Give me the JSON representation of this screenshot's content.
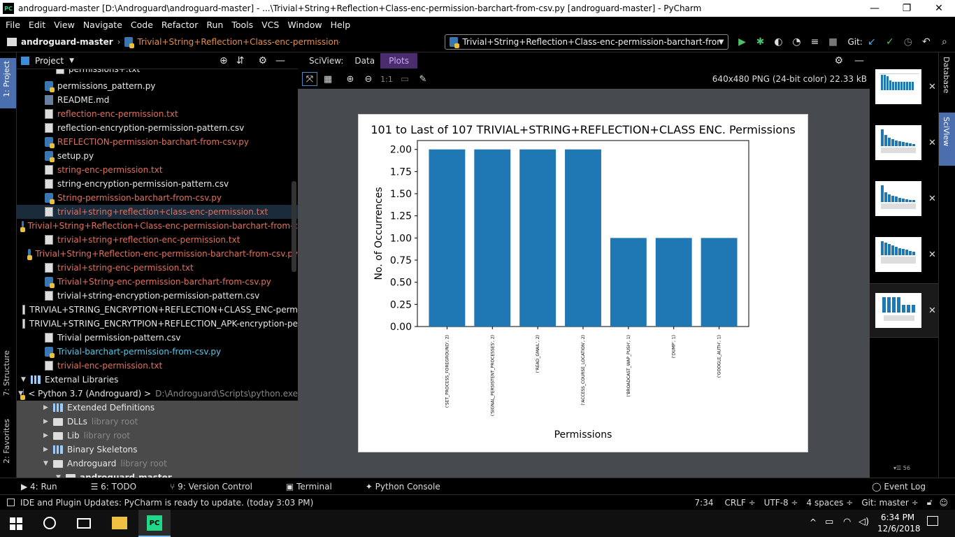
{
  "window": {
    "title": "androguard-master [D:\\Androguard\\androguard-master] - ...\\Trivial+String+Reflection+Class-enc-permission-barchart-from-csv.py [androguard-master] - PyCharm",
    "app_icon": "PC"
  },
  "menu": [
    "File",
    "Edit",
    "View",
    "Navigate",
    "Code",
    "Refactor",
    "Run",
    "Tools",
    "VCS",
    "Window",
    "Help"
  ],
  "nav": {
    "project": "androguard-master",
    "file": "Trivial+String+Reflection+Class-enc-permission-...",
    "run_config": "Trivial+String+Reflection+Class-enc-permission-barchart-from-csv",
    "git_label": "Git:"
  },
  "left_tabs": {
    "project": "1: Project",
    "structure": "7: Structure",
    "favorites": "2: Favorites"
  },
  "project_pane": {
    "title": "Project"
  },
  "tree": [
    {
      "label": "permissions+.txt",
      "icon": "txt",
      "color": "white",
      "indent": 56,
      "partial": true
    },
    {
      "label": "permissions_pattern.py",
      "icon": "py",
      "color": "white",
      "indent": 40
    },
    {
      "label": "README.md",
      "icon": "md",
      "color": "white",
      "indent": 40
    },
    {
      "label": "reflection-enc-permission.txt",
      "icon": "txt",
      "color": "red",
      "indent": 40
    },
    {
      "label": "reflection-encryption-permission-pattern.csv",
      "icon": "txt",
      "color": "white",
      "indent": 40
    },
    {
      "label": "REFLECTION-permission-barchart-from-csv.py",
      "icon": "py",
      "color": "red",
      "indent": 40
    },
    {
      "label": "setup.py",
      "icon": "py",
      "color": "white",
      "indent": 40
    },
    {
      "label": "string-enc-permission.txt",
      "icon": "txt",
      "color": "red",
      "indent": 40
    },
    {
      "label": "string-encryption-permission-pattern.csv",
      "icon": "txt",
      "color": "white",
      "indent": 40
    },
    {
      "label": "String-permission-barchart-from-csv.py",
      "icon": "py",
      "color": "red",
      "indent": 40
    },
    {
      "label": "trivial+string+reflection+class-enc-permission.txt",
      "icon": "txt",
      "color": "red",
      "indent": 40,
      "selected": true
    },
    {
      "label": "Trivial+String+Reflection+Class-enc-permission-barchart-from-c",
      "icon": "py",
      "color": "red",
      "indent": 40
    },
    {
      "label": "trivial+string+reflection-enc-permission.txt",
      "icon": "txt",
      "color": "red",
      "indent": 40
    },
    {
      "label": "Trivial+String+Reflection-enc-permission-barchart-from-csv.py",
      "icon": "py",
      "color": "red",
      "indent": 40
    },
    {
      "label": "trivial+string-enc-permission.txt",
      "icon": "txt",
      "color": "red",
      "indent": 40
    },
    {
      "label": "Trivial+String-enc-permission-barchart-from-csv.py",
      "icon": "py",
      "color": "red",
      "indent": 40
    },
    {
      "label": "trivial+string-encryption-permission-pattern.csv",
      "icon": "txt",
      "color": "white",
      "indent": 40
    },
    {
      "label": "TRIVIAL+STRING_ENCRYPTION+REFLECTION+CLASS_ENC-perm",
      "icon": "txt",
      "color": "white",
      "indent": 40
    },
    {
      "label": "TRIVIAL+STRING_ENCRYTPION+REFLECTION_APK-encryption-pe",
      "icon": "txt",
      "color": "white",
      "indent": 40
    },
    {
      "label": "Trivial permission-pattern.csv",
      "icon": "txt",
      "color": "white",
      "indent": 40
    },
    {
      "label": "Trivial-barchart-permission-from-csv.py",
      "icon": "py",
      "color": "cyan",
      "indent": 40
    },
    {
      "label": "trivial-enc-permission.txt",
      "icon": "txt",
      "color": "red",
      "indent": 40
    },
    {
      "label": "External Libraries",
      "icon": "lib",
      "color": "white",
      "indent": 6,
      "arrow": "▼"
    },
    {
      "label": "< Python 3.7 (Androguard) >",
      "suffix": "D:\\Androguard\\Scripts\\python.exe",
      "icon": "py",
      "color": "white",
      "indent": 20,
      "arrow": "▼"
    },
    {
      "label": "Extended Definitions",
      "icon": "lib",
      "color": "white",
      "indent": 38,
      "arrow": "▶",
      "gray": true
    },
    {
      "label": "DLLs",
      "suffix": "library root",
      "icon": "dir",
      "color": "white",
      "indent": 38,
      "arrow": "▶",
      "gray": true
    },
    {
      "label": "Lib",
      "suffix": "library root",
      "icon": "dir",
      "color": "white",
      "indent": 38,
      "arrow": "▶",
      "gray": true
    },
    {
      "label": "Binary Skeletons",
      "icon": "lib",
      "color": "white",
      "indent": 38,
      "arrow": "▶",
      "gray": true
    },
    {
      "label": "Androguard",
      "suffix": "library root",
      "icon": "dir",
      "color": "white",
      "indent": 38,
      "arrow": "▼",
      "gray": true
    },
    {
      "label": "androguard-master",
      "icon": "dir",
      "color": "white",
      "indent": 56,
      "arrow": "▼",
      "gray": true,
      "bold": true
    }
  ],
  "sciview": {
    "label": "SciView:",
    "tabs": [
      "Data",
      "Plots"
    ],
    "active_tab": "Plots",
    "image_info": "640x480 PNG (24-bit color) 22.33 kB",
    "zoom_label": "1:1"
  },
  "chart_data": {
    "type": "bar",
    "title": "101 to Last of 107 TRIVIAL+STRING+REFLECTION+CLASS ENC. Permissions",
    "xlabel": "Permissions",
    "ylabel": "No. of Occurrences",
    "categories": [
      "('SET_PROCESS_FOREGROUND', 2)",
      "('SIGNAL_PERSISTENT_PROCESSES', 2)",
      "('READ_GMAIL', 2)",
      "('ACCESS_COURSE_LOCATION', 2)",
      "('BROADCAST_WAP_PUSH', 1)",
      "('DUMP', 1)",
      "('GOOGLE_AUTH', 1)"
    ],
    "values": [
      2,
      2,
      2,
      2,
      1,
      1,
      1
    ],
    "ylim": [
      0,
      2.1
    ],
    "yticks": [
      "0.00",
      "0.25",
      "0.50",
      "0.75",
      "1.00",
      "1.25",
      "1.50",
      "1.75",
      "2.00"
    ],
    "bar_color": "#1f77b4"
  },
  "right_tabs": {
    "database": "Database",
    "sciview": "SciView"
  },
  "bottom_tools": [
    {
      "label": "4: Run",
      "icon": "run-icon"
    },
    {
      "label": "6: TODO",
      "icon": "todo-icon"
    },
    {
      "label": "9: Version Control",
      "icon": "vcs-icon"
    },
    {
      "label": "Terminal",
      "icon": "terminal-icon"
    },
    {
      "label": "Python Console",
      "icon": "python-icon"
    }
  ],
  "event_log": "Event Log",
  "status": {
    "message": "IDE and Plugin Updates: PyCharm is ready to update. (today 3:03 PM)",
    "position": "7:34",
    "line_sep": "CRLF ÷",
    "encoding": "UTF-8 ÷",
    "indent": "4 spaces ÷",
    "git": "Git: master ÷"
  },
  "taskbar": {
    "time": "6:34 PM",
    "date": "12/6/2018"
  }
}
